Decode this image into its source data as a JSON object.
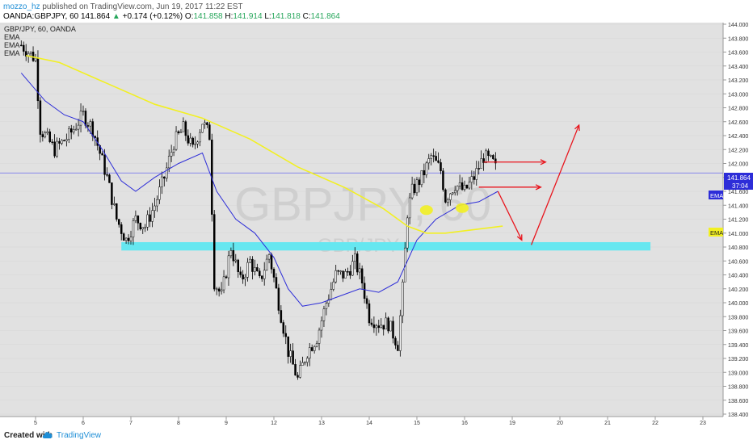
{
  "header": {
    "user": "mozzo_hz",
    "published": "published on TradingView.com, Jun 19, 2017 11:22 EST",
    "symbol": "OANDA:GBPJPY, 60",
    "last": "141.864",
    "arrow": "▲",
    "change": "+0.174 (+0.12%)",
    "o_label": "O:",
    "o": "141.858",
    "h_label": "H:",
    "h": "141.914",
    "l_label": "L:",
    "l": "141.818",
    "c_label": "C:",
    "c": "141.864"
  },
  "legend": {
    "title": "GBP/JPY, 60, OANDA",
    "ema1": "EMA",
    "ema2": "EMA",
    "ema3": "EMA"
  },
  "watermark": {
    "big": "GBPJPY, 60",
    "small": "GBP/JPY"
  },
  "footer": {
    "created": "Created with",
    "brand": "TradingView"
  },
  "badges": {
    "price": "141.864",
    "countdown": "37:04",
    "ema_blue": "EMA",
    "ema_yellow": "EMA"
  },
  "colors": {
    "background": "#e1e1e1",
    "ema_fast": "#2d2dd8",
    "ema_slow": "#f2f022",
    "zone": "#66e7f0",
    "annotation": "#e8141c",
    "candle": "#000000",
    "price_line": "#6a6af0"
  },
  "chart_data": {
    "type": "candlestick",
    "title": "GBP/JPY, 60, OANDA",
    "yticks": [
      "144.000",
      "143.800",
      "143.600",
      "143.400",
      "143.200",
      "143.000",
      "142.800",
      "142.600",
      "142.400",
      "142.200",
      "142.000",
      "141.800",
      "141.600",
      "141.400",
      "141.200",
      "141.000",
      "140.800",
      "140.600",
      "140.400",
      "140.200",
      "140.000",
      "139.800",
      "139.600",
      "139.400",
      "139.200",
      "139.000",
      "138.800",
      "138.600",
      "138.400"
    ],
    "xticks": [
      "5",
      "6",
      "7",
      "8",
      "9",
      "12",
      "13",
      "14",
      "15",
      "16",
      "19",
      "20",
      "21",
      "22",
      "23"
    ],
    "ylim": [
      138.4,
      144.0
    ],
    "last_price": 141.864,
    "price_path": [
      [
        -0.3,
        143.7
      ],
      [
        0,
        143.5
      ],
      [
        0.1,
        142.5
      ],
      [
        0.4,
        142.2
      ],
      [
        0.7,
        142.4
      ],
      [
        1.0,
        142.7
      ],
      [
        1.2,
        142.5
      ],
      [
        1.5,
        141.8
      ],
      [
        1.7,
        141.2
      ],
      [
        1.9,
        140.9
      ],
      [
        2.1,
        141.2
      ],
      [
        2.3,
        141.1
      ],
      [
        2.5,
        141.4
      ],
      [
        2.7,
        141.8
      ],
      [
        2.9,
        142.3
      ],
      [
        3.1,
        142.5
      ],
      [
        3.3,
        142.2
      ],
      [
        3.5,
        142.6
      ],
      [
        3.65,
        142.4
      ],
      [
        3.75,
        140.3
      ],
      [
        3.9,
        140.1
      ],
      [
        4.1,
        140.8
      ],
      [
        4.3,
        140.3
      ],
      [
        4.5,
        140.6
      ],
      [
        4.7,
        140.3
      ],
      [
        4.9,
        140.7
      ],
      [
        5.1,
        140.0
      ],
      [
        5.3,
        139.3
      ],
      [
        5.5,
        138.9
      ],
      [
        5.7,
        139.3
      ],
      [
        5.9,
        139.5
      ],
      [
        6.1,
        140.0
      ],
      [
        6.3,
        140.4
      ],
      [
        6.5,
        140.4
      ],
      [
        6.7,
        140.6
      ],
      [
        6.85,
        140.3
      ],
      [
        7.0,
        139.8
      ],
      [
        7.2,
        139.7
      ],
      [
        7.4,
        139.7
      ],
      [
        7.6,
        139.4
      ],
      [
        7.7,
        140.2
      ],
      [
        7.8,
        141.3
      ],
      [
        7.9,
        141.6
      ],
      [
        8.1,
        141.8
      ],
      [
        8.3,
        142.1
      ],
      [
        8.5,
        141.9
      ],
      [
        8.6,
        141.5
      ],
      [
        8.8,
        141.7
      ],
      [
        9.0,
        141.6
      ],
      [
        9.2,
        141.8
      ],
      [
        9.4,
        142.1
      ],
      [
        9.6,
        142.0
      ],
      [
        9.7,
        141.86
      ]
    ],
    "ema_fast": [
      [
        -0.3,
        143.3
      ],
      [
        0.2,
        142.9
      ],
      [
        0.6,
        142.7
      ],
      [
        1.0,
        142.6
      ],
      [
        1.4,
        142.2
      ],
      [
        1.8,
        141.75
      ],
      [
        2.1,
        141.6
      ],
      [
        2.5,
        141.8
      ],
      [
        3.0,
        142.0
      ],
      [
        3.5,
        142.15
      ],
      [
        3.8,
        141.6
      ],
      [
        4.2,
        141.2
      ],
      [
        4.6,
        141.0
      ],
      [
        5.0,
        140.65
      ],
      [
        5.3,
        140.2
      ],
      [
        5.6,
        139.95
      ],
      [
        6.0,
        140.0
      ],
      [
        6.4,
        140.1
      ],
      [
        6.8,
        140.2
      ],
      [
        7.2,
        140.15
      ],
      [
        7.6,
        140.3
      ],
      [
        8.0,
        140.9
      ],
      [
        8.4,
        141.2
      ],
      [
        8.9,
        141.4
      ],
      [
        9.3,
        141.45
      ],
      [
        9.7,
        141.6
      ]
    ],
    "ema_slow": [
      [
        -0.2,
        143.55
      ],
      [
        0.5,
        143.45
      ],
      [
        1.5,
        143.15
      ],
      [
        2.5,
        142.85
      ],
      [
        3.5,
        142.65
      ],
      [
        4.5,
        142.35
      ],
      [
        5.5,
        141.95
      ],
      [
        6.5,
        141.65
      ],
      [
        7.3,
        141.35
      ],
      [
        7.8,
        141.1
      ],
      [
        8.2,
        141.0
      ],
      [
        8.6,
        141.0
      ],
      [
        9.2,
        141.05
      ],
      [
        9.8,
        141.1
      ]
    ],
    "zone": {
      "x": [
        1.8,
        12.9
      ],
      "y": [
        140.75,
        140.87
      ]
    },
    "arrows": [
      {
        "from": [
          9.4,
          142.02
        ],
        "to": [
          10.7,
          142.02
        ]
      },
      {
        "from": [
          9.3,
          141.66
        ],
        "to": [
          10.6,
          141.66
        ]
      },
      {
        "from": [
          9.7,
          141.6
        ],
        "to": [
          10.2,
          140.9
        ]
      },
      {
        "from": [
          10.4,
          140.83
        ],
        "to": [
          11.4,
          142.55
        ]
      }
    ],
    "ellipses": [
      [
        8.2,
        141.33
      ],
      [
        8.95,
        141.36
      ]
    ]
  }
}
